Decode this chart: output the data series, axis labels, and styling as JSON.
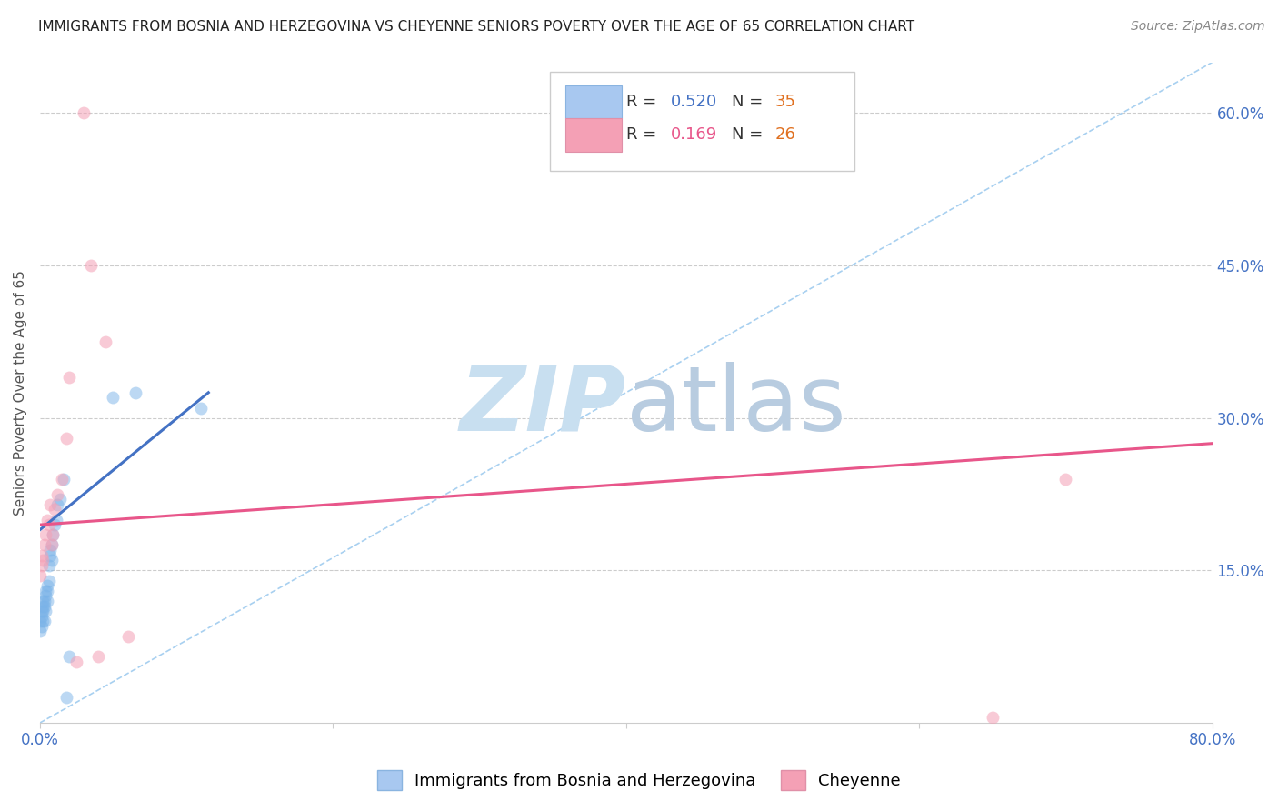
{
  "title": "IMMIGRANTS FROM BOSNIA AND HERZEGOVINA VS CHEYENNE SENIORS POVERTY OVER THE AGE OF 65 CORRELATION CHART",
  "source": "Source: ZipAtlas.com",
  "ylabel": "Seniors Poverty Over the Age of 65",
  "xlim": [
    0.0,
    0.8
  ],
  "ylim": [
    0.0,
    0.65
  ],
  "yticks_right": [
    0.15,
    0.3,
    0.45,
    0.6
  ],
  "yticklabels_right": [
    "15.0%",
    "30.0%",
    "45.0%",
    "60.0%"
  ],
  "blue_scatter": {
    "x": [
      0.0,
      0.0,
      0.001,
      0.001,
      0.001,
      0.002,
      0.002,
      0.002,
      0.002,
      0.003,
      0.003,
      0.003,
      0.004,
      0.004,
      0.004,
      0.005,
      0.005,
      0.005,
      0.006,
      0.006,
      0.007,
      0.007,
      0.008,
      0.008,
      0.009,
      0.01,
      0.011,
      0.012,
      0.014,
      0.016,
      0.018,
      0.02,
      0.05,
      0.065,
      0.11
    ],
    "y": [
      0.09,
      0.1,
      0.095,
      0.105,
      0.11,
      0.1,
      0.11,
      0.115,
      0.12,
      0.1,
      0.115,
      0.12,
      0.11,
      0.125,
      0.13,
      0.12,
      0.13,
      0.135,
      0.14,
      0.155,
      0.165,
      0.17,
      0.16,
      0.175,
      0.185,
      0.195,
      0.2,
      0.215,
      0.22,
      0.24,
      0.025,
      0.065,
      0.32,
      0.325,
      0.31
    ],
    "color": "#7ab3e8",
    "size": 100,
    "alpha": 0.5
  },
  "pink_scatter": {
    "x": [
      0.0,
      0.001,
      0.001,
      0.002,
      0.003,
      0.004,
      0.005,
      0.006,
      0.007,
      0.008,
      0.009,
      0.01,
      0.012,
      0.015,
      0.018,
      0.02,
      0.025,
      0.03,
      0.035,
      0.04,
      0.045,
      0.06,
      0.65,
      0.7
    ],
    "y": [
      0.145,
      0.155,
      0.165,
      0.16,
      0.175,
      0.185,
      0.2,
      0.195,
      0.215,
      0.175,
      0.185,
      0.21,
      0.225,
      0.24,
      0.28,
      0.34,
      0.06,
      0.6,
      0.45,
      0.065,
      0.375,
      0.085,
      0.005,
      0.24
    ],
    "color": "#f4a0b5",
    "size": 100,
    "alpha": 0.55
  },
  "blue_trendline": {
    "x": [
      0.0,
      0.115
    ],
    "y": [
      0.19,
      0.325
    ],
    "color": "#4472c4",
    "linewidth": 2.2
  },
  "pink_trendline": {
    "x": [
      0.0,
      0.8
    ],
    "y": [
      0.195,
      0.275
    ],
    "color": "#e8568a",
    "linewidth": 2.2
  },
  "diagonal_line": {
    "x": [
      0.0,
      0.8
    ],
    "y": [
      0.0,
      0.65
    ],
    "color": "#a8d0f0",
    "linewidth": 1.2,
    "linestyle": "--"
  },
  "watermark_zip": "ZIP",
  "watermark_atlas": "atlas",
  "watermark_color_zip": "#c8dff0",
  "watermark_color_atlas": "#b8cce0",
  "background_color": "#ffffff",
  "title_color": "#222222",
  "axis_label_color": "#555555",
  "tick_color": "#4472c4",
  "grid_color": "#cccccc",
  "title_fontsize": 11,
  "axis_label_fontsize": 11,
  "tick_fontsize": 12,
  "legend_fontsize": 13,
  "source_fontsize": 10,
  "legend_box_blue": "#a8c8f0",
  "legend_box_pink": "#f4a0b5",
  "legend_R_color_blue": "#4472c4",
  "legend_N_color_blue": "#e07020",
  "legend_R_color_pink": "#e8568a",
  "legend_N_color_pink": "#e07020",
  "bottom_legend_blue": "Immigrants from Bosnia and Herzegovina",
  "bottom_legend_pink": "Cheyenne"
}
